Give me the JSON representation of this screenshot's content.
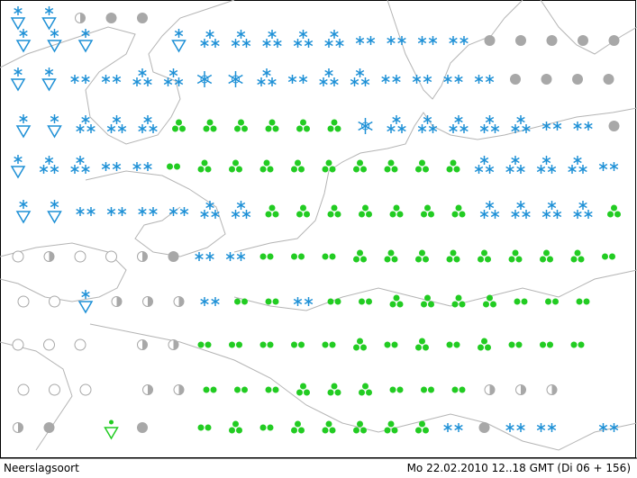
{
  "map": {
    "legend_title": "Neerslagsoort",
    "timestamp": "Mo 22.02.2010 12..18 GMT (Di 06 + 156)"
  }
}
